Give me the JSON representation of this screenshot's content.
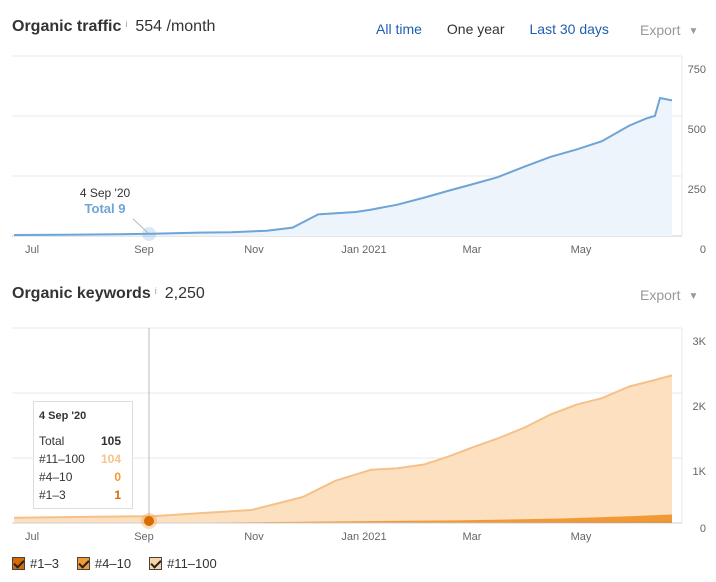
{
  "traffic": {
    "title": "Organic traffic",
    "info": "i",
    "value": "554 /month",
    "ranges": [
      "All time",
      "One year",
      "Last 30 days"
    ],
    "active_range": "One year",
    "export": "Export",
    "tooltip": {
      "date": "4 Sep '20",
      "total": "Total 9"
    }
  },
  "keywords": {
    "title": "Organic keywords",
    "info": "i",
    "value": "2,250",
    "export": "Export",
    "tooltip": {
      "date": "4 Sep '20",
      "rows": [
        {
          "label": "Total",
          "value": "105"
        },
        {
          "label": "#11–100",
          "value": "104"
        },
        {
          "label": "#4–10",
          "value": "0"
        },
        {
          "label": "#1–3",
          "value": "1"
        }
      ]
    }
  },
  "legend": [
    {
      "label": "#1–3",
      "color": "#d96a00"
    },
    {
      "label": "#4–10",
      "color": "#f29a35"
    },
    {
      "label": "#11–100",
      "color": "#fbd2a3"
    }
  ],
  "colors": {
    "traffic_line": "#6ea4d6",
    "traffic_fill": "#eef4fc",
    "kw_top": "#f5c089",
    "kw_fill": "#fde0c0",
    "kw_mid": "#f19a35",
    "kw_low": "#d96a00"
  },
  "chart_data": [
    {
      "type": "area",
      "title": "Organic traffic",
      "x_ticks": [
        "Jul",
        "Sep",
        "Nov",
        "Jan 2021",
        "Mar",
        "May"
      ],
      "y_ticks": [
        "750",
        "500",
        "250",
        "0"
      ],
      "ylim": [
        0,
        750
      ],
      "grid": true,
      "series": [
        {
          "values": [
            [
              "2020-06-15",
              4
            ],
            [
              "2020-07-15",
              5
            ],
            [
              "2020-08-15",
              7
            ],
            [
              "2020-09-04",
              9
            ],
            [
              "2020-10-01",
              14
            ],
            [
              "2020-10-20",
              16
            ],
            [
              "2020-11-10",
              22
            ],
            [
              "2020-11-25",
              35
            ],
            [
              "2020-12-10",
              90
            ],
            [
              "2021-01-01",
              100
            ],
            [
              "2021-01-10",
              110
            ],
            [
              "2021-01-25",
              130
            ],
            [
              "2021-02-10",
              160
            ],
            [
              "2021-02-25",
              190
            ],
            [
              "2021-03-10",
              215
            ],
            [
              "2021-03-25",
              245
            ],
            [
              "2021-04-10",
              290
            ],
            [
              "2021-04-25",
              330
            ],
            [
              "2021-05-10",
              360
            ],
            [
              "2021-05-25",
              395
            ],
            [
              "2021-06-10",
              460
            ],
            [
              "2021-06-20",
              490
            ],
            [
              "2021-06-25",
              500
            ],
            [
              "2021-06-28",
              575
            ],
            [
              "2021-07-05",
              565
            ]
          ]
        }
      ]
    },
    {
      "type": "area",
      "title": "Organic keywords",
      "x_ticks": [
        "Jul",
        "Sep",
        "Nov",
        "Jan 2021",
        "Mar",
        "May"
      ],
      "y_ticks": [
        "3K",
        "2K",
        "1K",
        "0"
      ],
      "ylim": [
        0,
        3000
      ],
      "grid": true,
      "series": [
        {
          "name": "#11–100",
          "values": [
            [
              "2020-06-15",
              80
            ],
            [
              "2020-07-15",
              90
            ],
            [
              "2020-08-15",
              100
            ],
            [
              "2020-09-04",
              104
            ],
            [
              "2020-10-01",
              150
            ],
            [
              "2020-11-01",
              200
            ],
            [
              "2020-12-01",
              400
            ],
            [
              "2020-12-20",
              650
            ],
            [
              "2021-01-10",
              820
            ],
            [
              "2021-01-25",
              840
            ],
            [
              "2021-02-10",
              900
            ],
            [
              "2021-02-25",
              1030
            ],
            [
              "2021-03-10",
              1160
            ],
            [
              "2021-03-25",
              1300
            ],
            [
              "2021-04-10",
              1470
            ],
            [
              "2021-04-25",
              1670
            ],
            [
              "2021-05-10",
              1820
            ],
            [
              "2021-05-25",
              1920
            ],
            [
              "2021-06-10",
              2100
            ],
            [
              "2021-06-25",
              2200
            ],
            [
              "2021-07-05",
              2270
            ]
          ]
        },
        {
          "name": "#4–10",
          "values": [
            [
              "2020-06-15",
              0
            ],
            [
              "2020-09-04",
              0
            ],
            [
              "2020-12-01",
              20
            ],
            [
              "2021-03-01",
              40
            ],
            [
              "2021-05-01",
              70
            ],
            [
              "2021-06-15",
              110
            ],
            [
              "2021-07-05",
              130
            ]
          ]
        },
        {
          "name": "#1–3",
          "values": [
            [
              "2020-06-15",
              1
            ],
            [
              "2020-09-04",
              1
            ],
            [
              "2020-12-01",
              5
            ],
            [
              "2021-03-01",
              10
            ],
            [
              "2021-07-05",
              20
            ]
          ]
        }
      ]
    }
  ]
}
